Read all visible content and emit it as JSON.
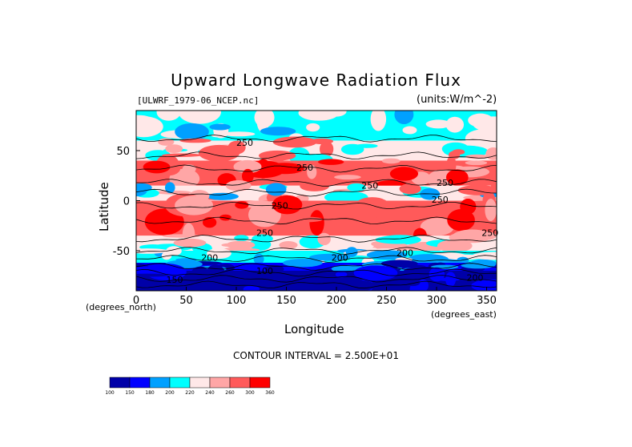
{
  "chart_data": {
    "type": "heatmap",
    "title": "Upward Longwave Radiation Flux",
    "file_label": "[ULWRF_1979-06_NCEP.nc]",
    "units_label": "(units:W/m^-2)",
    "xlabel": "Longitude",
    "ylabel": "Latitude",
    "x_unit_label": "(degrees_east)",
    "y_unit_label": "(degrees_north)",
    "xlim": [
      0,
      360
    ],
    "ylim": [
      -90,
      90
    ],
    "x_ticks": [
      0,
      50,
      100,
      150,
      200,
      250,
      300,
      350
    ],
    "y_ticks": [
      50,
      0,
      -50
    ],
    "contour_interval_text": "CONTOUR INTERVAL = 2.500E+01",
    "contour_labels": [
      "250",
      "250",
      "250",
      "250",
      "250",
      "250",
      "250",
      "200",
      "200",
      "200",
      "200",
      "100",
      "150",
      "250"
    ],
    "colorbar": {
      "levels": [
        "100",
        "150",
        "180",
        "200",
        "220",
        "240",
        "260",
        "300",
        "360"
      ],
      "colors": [
        "#0000a8",
        "#0000ff",
        "#00a0ff",
        "#00ffff",
        "#ffe8e8",
        "#ffa6a6",
        "#ff5a5a",
        "#ff0000"
      ]
    },
    "latitude_bands": [
      {
        "lat": [
          60,
          90
        ],
        "class": "cyan-white"
      },
      {
        "lat": [
          40,
          60
        ],
        "class": "pink-white"
      },
      {
        "lat": [
          15,
          40
        ],
        "class": "red"
      },
      {
        "lat": [
          0,
          15
        ],
        "class": "mixed"
      },
      {
        "lat": [
          -35,
          0
        ],
        "class": "red"
      },
      {
        "lat": [
          -50,
          -35
        ],
        "class": "pink"
      },
      {
        "lat": [
          -62,
          -50
        ],
        "class": "cyan"
      },
      {
        "lat": [
          -70,
          -62
        ],
        "class": "blue"
      },
      {
        "lat": [
          -90,
          -70
        ],
        "class": "dark-blue"
      }
    ]
  }
}
